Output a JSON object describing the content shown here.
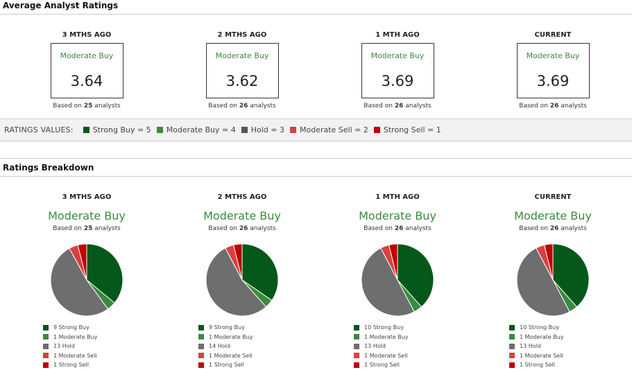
{
  "avg": {
    "title": "Average Analyst Ratings",
    "columns": [
      {
        "title": "3 MTHS AGO",
        "rating": "Moderate Buy",
        "value": "3.64",
        "based_pre": "Based on",
        "count": "25",
        "based_post": "analysts"
      },
      {
        "title": "2 MTHS AGO",
        "rating": "Moderate Buy",
        "value": "3.62",
        "based_pre": "Based on",
        "count": "26",
        "based_post": "analysts"
      },
      {
        "title": "1 MTH AGO",
        "rating": "Moderate Buy",
        "value": "3.69",
        "based_pre": "Based on",
        "count": "26",
        "based_post": "analysts"
      },
      {
        "title": "CURRENT",
        "rating": "Moderate Buy",
        "value": "3.69",
        "based_pre": "Based on",
        "count": "26",
        "based_post": "analysts"
      }
    ]
  },
  "values_bar": {
    "label": "RATINGS VALUES:",
    "items": [
      {
        "label": "Strong Buy = 5",
        "color": "#04581a"
      },
      {
        "label": "Moderate Buy = 4",
        "color": "#3a8a3e"
      },
      {
        "label": "Hold = 3",
        "color": "#555555"
      },
      {
        "label": "Moderate Sell = 2",
        "color": "#d94040"
      },
      {
        "label": "Strong Sell = 1",
        "color": "#c00000"
      }
    ]
  },
  "breakdown": {
    "title": "Ratings Breakdown",
    "colors": [
      "#04581a",
      "#3a8a3e",
      "#6e6e6e",
      "#d94040",
      "#c00000"
    ],
    "columns": [
      {
        "title": "3 MTHS AGO",
        "rating": "Moderate Buy",
        "based_pre": "Based on",
        "count": "25",
        "based_post": "analysts",
        "counts": [
          9,
          1,
          13,
          1,
          1
        ],
        "legend": [
          "9 Strong Buy",
          "1 Moderate Buy",
          "13 Hold",
          "1 Moderate Sell",
          "1 Strong Sell"
        ]
      },
      {
        "title": "2 MTHS AGO",
        "rating": "Moderate Buy",
        "based_pre": "Based on",
        "count": "26",
        "based_post": "analysts",
        "counts": [
          9,
          1,
          14,
          1,
          1
        ],
        "legend": [
          "9 Strong Buy",
          "1 Moderate Buy",
          "14 Hold",
          "1 Moderate Sell",
          "1 Strong Sell"
        ]
      },
      {
        "title": "1 MTH AGO",
        "rating": "Moderate Buy",
        "based_pre": "Based on",
        "count": "26",
        "based_post": "analysts",
        "counts": [
          10,
          1,
          13,
          1,
          1
        ],
        "legend": [
          "10 Strong Buy",
          "1 Moderate Buy",
          "13 Hold",
          "1 Moderate Sell",
          "1 Strong Sell"
        ]
      },
      {
        "title": "CURRENT",
        "rating": "Moderate Buy",
        "based_pre": "Based on",
        "count": "26",
        "based_post": "analysts",
        "counts": [
          10,
          1,
          13,
          1,
          1
        ],
        "legend": [
          "10 Strong Buy",
          "1 Moderate Buy",
          "13 Hold",
          "1 Moderate Sell",
          "1 Strong Sell"
        ]
      }
    ]
  }
}
